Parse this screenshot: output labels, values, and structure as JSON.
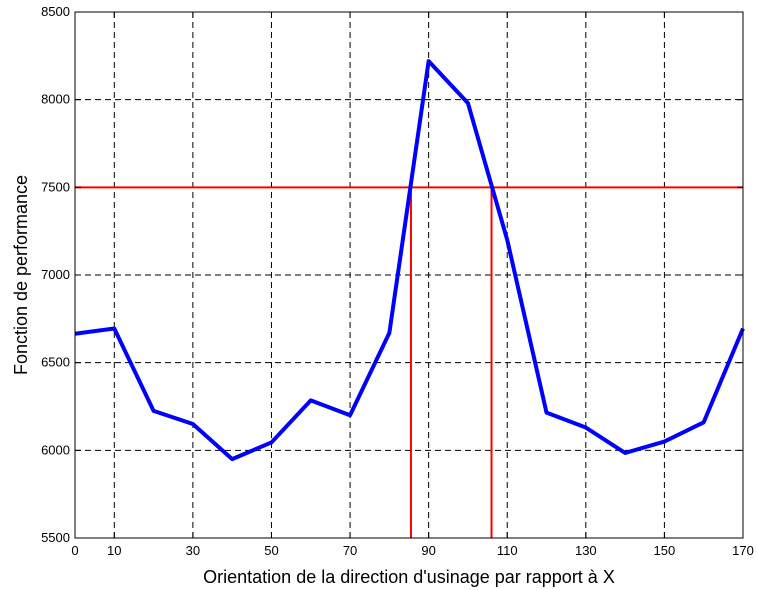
{
  "chart_data": {
    "type": "line",
    "title": "",
    "xlabel": "Orientation de la direction d'usinage par rapport à X",
    "ylabel": "Fonction de performance",
    "xlim": [
      0,
      170
    ],
    "ylim": [
      5500,
      8500
    ],
    "xticks": [
      0,
      10,
      30,
      50,
      70,
      90,
      110,
      130,
      150,
      170
    ],
    "xgrid": [
      10,
      30,
      50,
      70,
      90,
      110,
      130,
      150
    ],
    "yticks": [
      5500,
      6000,
      6500,
      7000,
      7500,
      8000,
      8500
    ],
    "grid": true,
    "series": [
      {
        "color": "#0000ff",
        "x": [
          0,
          10,
          20,
          30,
          40,
          50,
          60,
          70,
          80,
          90,
          100,
          110,
          120,
          130,
          140,
          150,
          160,
          170
        ],
        "y": [
          6665,
          6695,
          6225,
          6150,
          5950,
          6045,
          6285,
          6200,
          6670,
          8220,
          7980,
          7200,
          6215,
          6130,
          5985,
          6050,
          6160,
          6695
        ]
      }
    ],
    "threshold": {
      "y": 7500,
      "x_crossings": [
        85.5,
        106
      ],
      "color": "#ff0000"
    }
  }
}
